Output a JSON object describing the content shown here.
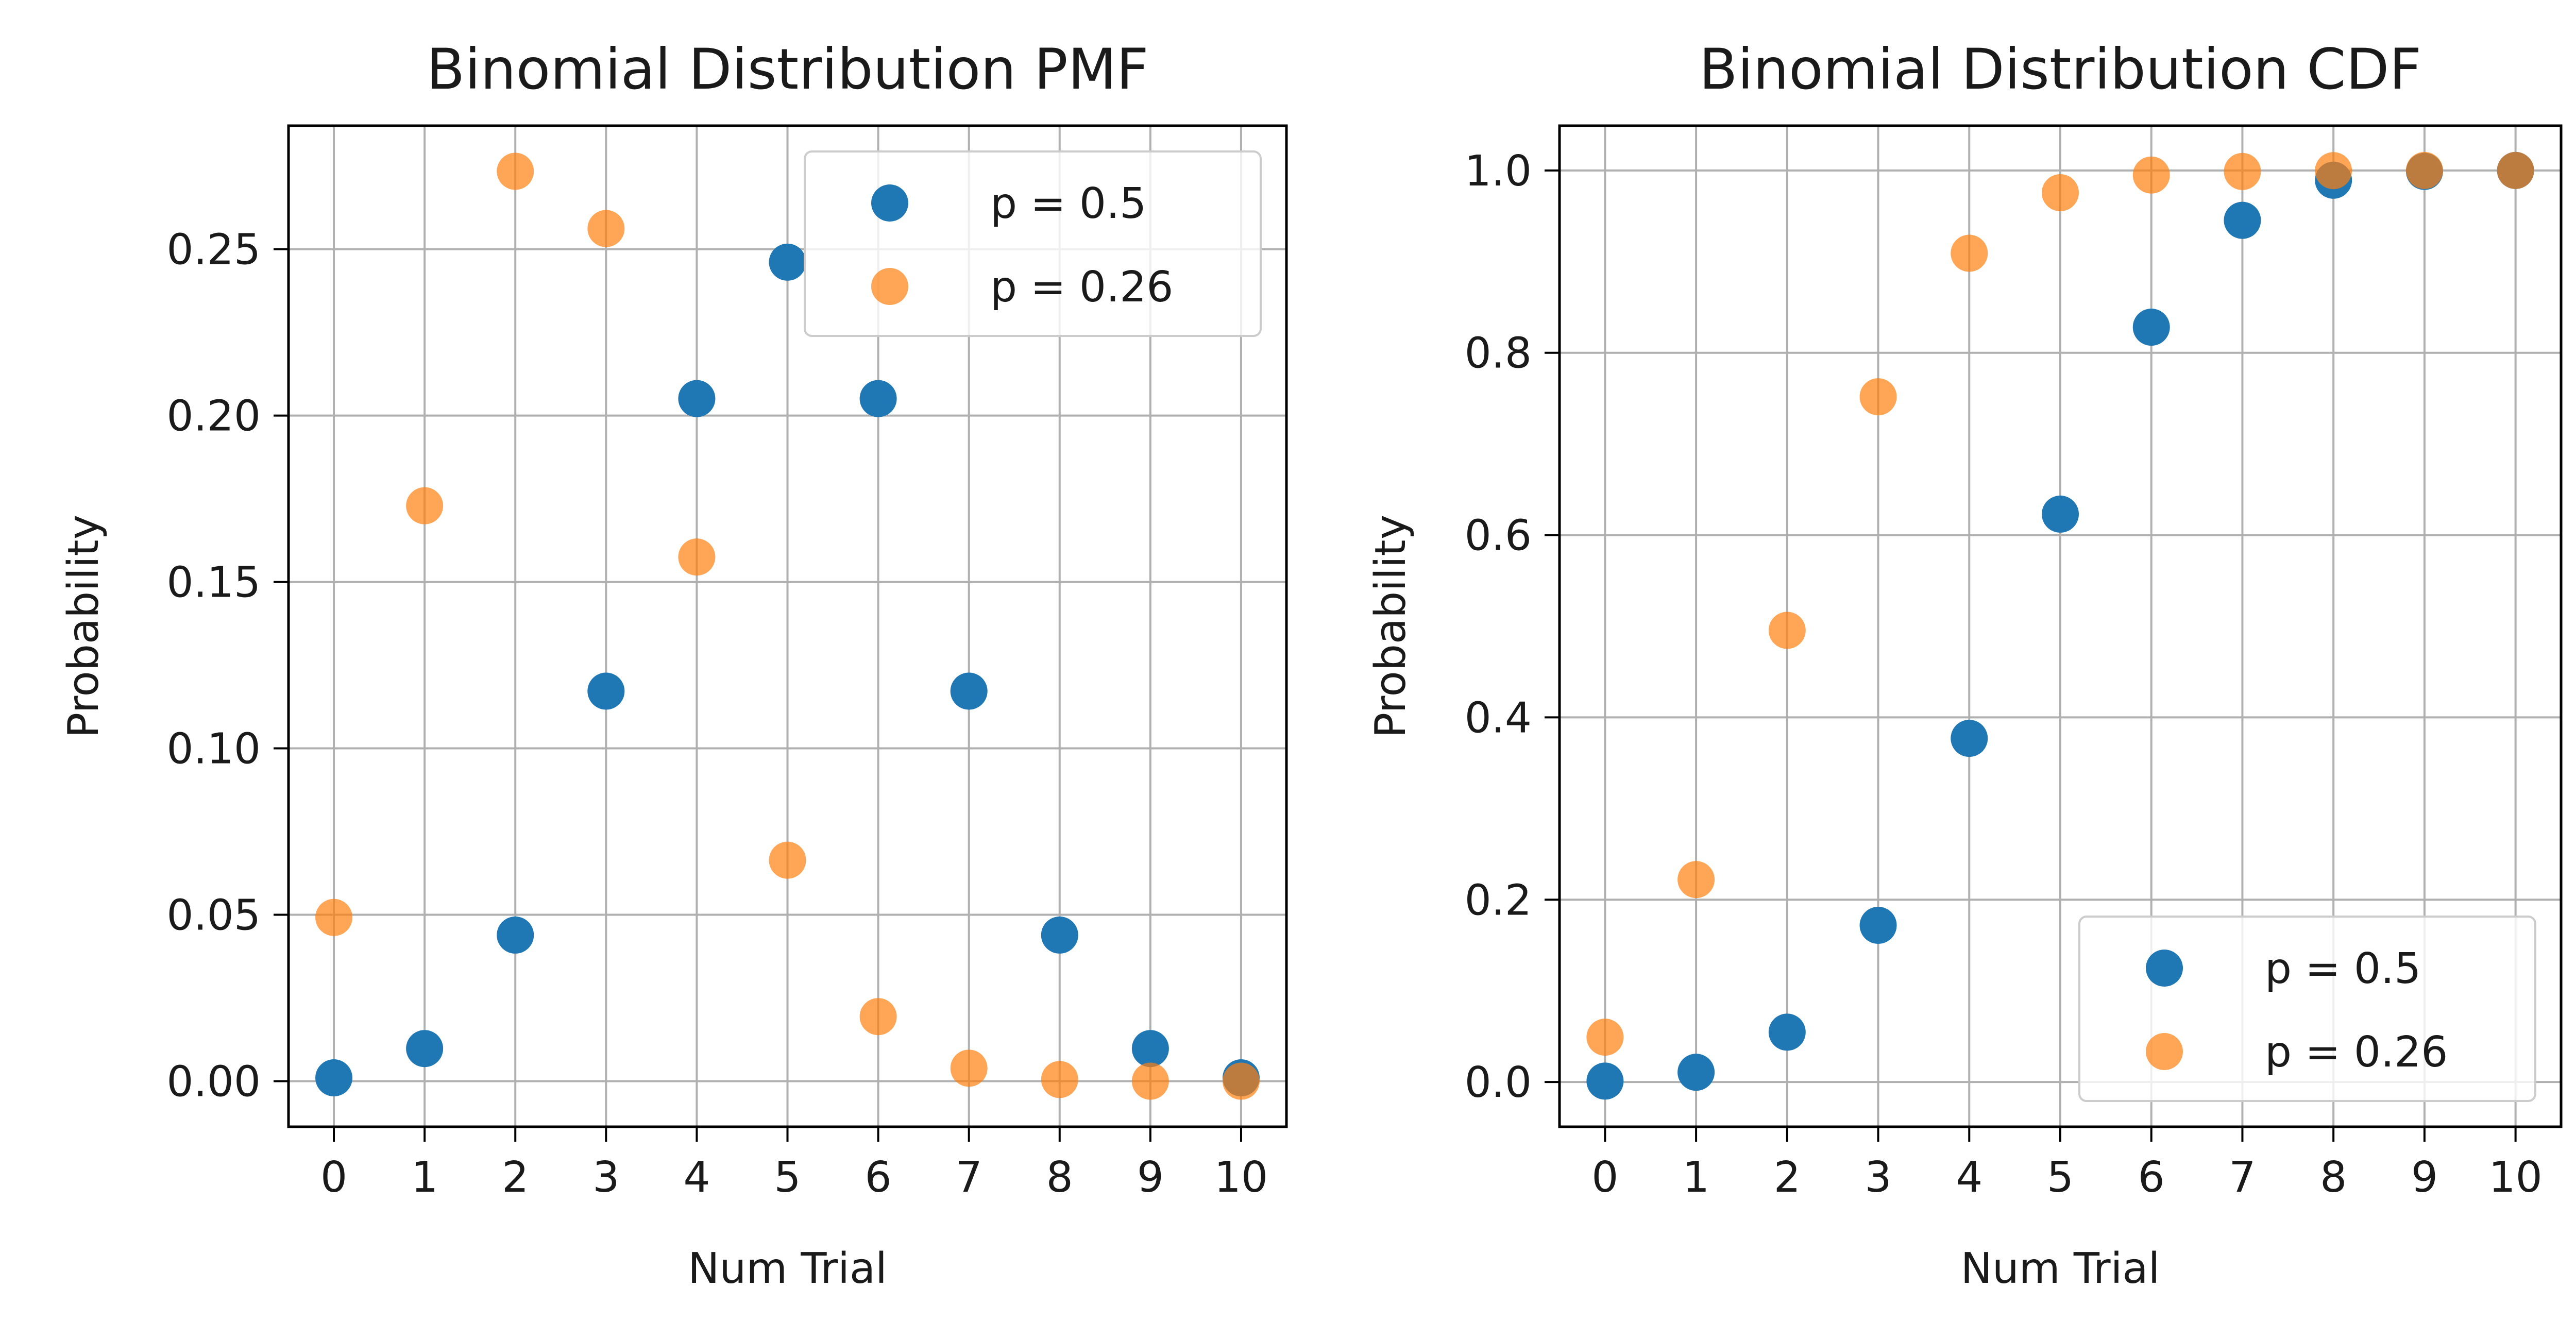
{
  "chart_data": [
    {
      "type": "scatter",
      "title": "Binomial Distribution PMF",
      "xlabel": "Num Trial",
      "ylabel": "Probability",
      "xlim": [
        -0.5,
        10.5
      ],
      "ylim": [
        -0.0137,
        0.2871
      ],
      "x_ticks": [
        0,
        1,
        2,
        3,
        4,
        5,
        6,
        7,
        8,
        9,
        10
      ],
      "y_ticks": [
        0.0,
        0.05,
        0.1,
        0.15,
        0.2,
        0.25
      ],
      "y_tick_labels": [
        "0.00",
        "0.05",
        "0.10",
        "0.15",
        "0.20",
        "0.25"
      ],
      "grid": true,
      "legend": "top-right",
      "series": [
        {
          "name": "p = 0.5",
          "color": "#1f77b4",
          "x": [
            0,
            1,
            2,
            3,
            4,
            5,
            6,
            7,
            8,
            9,
            10
          ],
          "values": [
            0.001,
            0.0098,
            0.0439,
            0.1172,
            0.2051,
            0.2461,
            0.2051,
            0.1172,
            0.0439,
            0.0098,
            0.001
          ]
        },
        {
          "name": "p = 0.26",
          "color": "#ff7f0e",
          "x": [
            0,
            1,
            2,
            3,
            4,
            5,
            6,
            7,
            8,
            9,
            10
          ],
          "values": [
            0.0492,
            0.1729,
            0.2734,
            0.2562,
            0.1575,
            0.0664,
            0.0194,
            0.0039,
            0.0005,
            0.0,
            0.0
          ]
        }
      ]
    },
    {
      "type": "scatter",
      "title": "Binomial Distribution CDF",
      "xlabel": "Num Trial",
      "ylabel": "Probability",
      "xlim": [
        -0.5,
        10.5
      ],
      "ylim": [
        -0.0491,
        1.0491
      ],
      "x_ticks": [
        0,
        1,
        2,
        3,
        4,
        5,
        6,
        7,
        8,
        9,
        10
      ],
      "y_ticks": [
        0.0,
        0.2,
        0.4,
        0.6,
        0.8,
        1.0
      ],
      "y_tick_labels": [
        "0.0",
        "0.2",
        "0.4",
        "0.6",
        "0.8",
        "1.0"
      ],
      "grid": true,
      "legend": "bottom-right",
      "series": [
        {
          "name": "p = 0.5",
          "color": "#1f77b4",
          "x": [
            0,
            1,
            2,
            3,
            4,
            5,
            6,
            7,
            8,
            9,
            10
          ],
          "values": [
            0.001,
            0.0107,
            0.0547,
            0.1719,
            0.377,
            0.623,
            0.8281,
            0.9453,
            0.9893,
            0.999,
            1.0
          ]
        },
        {
          "name": "p = 0.26",
          "color": "#ff7f0e",
          "x": [
            0,
            1,
            2,
            3,
            4,
            5,
            6,
            7,
            8,
            9,
            10
          ],
          "values": [
            0.0492,
            0.2221,
            0.4955,
            0.7517,
            0.9092,
            0.9756,
            0.995,
            0.9989,
            0.9998,
            1.0,
            1.0
          ]
        }
      ]
    }
  ]
}
